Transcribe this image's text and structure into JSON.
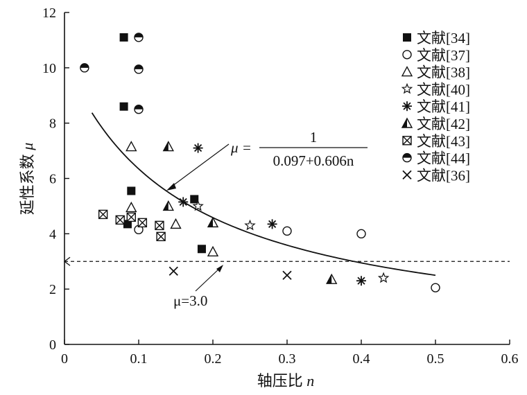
{
  "chart_data": {
    "type": "scatter",
    "xlabel": "轴压比",
    "xlabel_var": "n",
    "ylabel": "延性系数",
    "ylabel_var": "μ",
    "xlim": [
      0,
      0.6
    ],
    "ylim": [
      0,
      12
    ],
    "xticks": [
      0,
      0.1,
      0.2,
      0.3,
      0.4,
      0.5,
      0.6
    ],
    "yticks": [
      0,
      2,
      4,
      6,
      8,
      10,
      12
    ],
    "xtick_labels": [
      "0",
      "0.1",
      "0.2",
      "0.3",
      "0.4",
      "0.5",
      "0.6"
    ],
    "ytick_labels": [
      "0",
      "2",
      "4",
      "6",
      "8",
      "10",
      "12"
    ],
    "grid": false,
    "legend_position": "top-right",
    "series": [
      {
        "name": "文献[34]",
        "marker": "filled-square",
        "points": [
          [
            0.08,
            11.1
          ],
          [
            0.08,
            8.6
          ],
          [
            0.09,
            5.55
          ],
          [
            0.085,
            4.35
          ],
          [
            0.175,
            5.25
          ],
          [
            0.185,
            3.45
          ]
        ]
      },
      {
        "name": "文献[37]",
        "marker": "open-circle",
        "points": [
          [
            0.1,
            4.15
          ],
          [
            0.3,
            4.1
          ],
          [
            0.4,
            4.0
          ],
          [
            0.5,
            2.05
          ]
        ]
      },
      {
        "name": "文献[38]",
        "marker": "open-triangle",
        "points": [
          [
            0.09,
            7.15
          ],
          [
            0.09,
            4.95
          ],
          [
            0.15,
            4.35
          ],
          [
            0.2,
            3.35
          ]
        ]
      },
      {
        "name": "文献[40]",
        "marker": "open-star",
        "points": [
          [
            0.18,
            5.0
          ],
          [
            0.25,
            4.3
          ],
          [
            0.43,
            2.4
          ]
        ]
      },
      {
        "name": "文献[41]",
        "marker": "asterisk",
        "points": [
          [
            0.18,
            7.1
          ],
          [
            0.16,
            5.15
          ],
          [
            0.28,
            4.35
          ],
          [
            0.4,
            2.3
          ]
        ]
      },
      {
        "name": "文献[42]",
        "marker": "half-filled-triangle",
        "points": [
          [
            0.14,
            7.15
          ],
          [
            0.14,
            5.0
          ],
          [
            0.2,
            4.4
          ],
          [
            0.36,
            2.35
          ]
        ]
      },
      {
        "name": "文献[43]",
        "marker": "crossed-square",
        "points": [
          [
            0.052,
            4.7
          ],
          [
            0.075,
            4.5
          ],
          [
            0.09,
            4.6
          ],
          [
            0.105,
            4.4
          ],
          [
            0.128,
            4.3
          ],
          [
            0.13,
            3.9
          ]
        ]
      },
      {
        "name": "文献[44]",
        "marker": "half-filled-circle",
        "points": [
          [
            0.027,
            10.0
          ],
          [
            0.1,
            11.1
          ],
          [
            0.1,
            9.95
          ],
          [
            0.1,
            8.5
          ]
        ]
      },
      {
        "name": "文献[36]",
        "marker": "cross",
        "points": [
          [
            0.147,
            2.65
          ],
          [
            0.3,
            2.5
          ]
        ]
      }
    ],
    "fit_curve": {
      "formula_a": 1,
      "formula_b": 0.097,
      "formula_c": 0.606,
      "x_range": [
        0.037,
        0.5
      ],
      "label_lhs": "μ =",
      "label_numerator": "1",
      "label_denominator": "0.097+0.606n"
    },
    "reference_line": {
      "y": 3.0,
      "style": "dashed",
      "label": "μ=3.0"
    }
  }
}
